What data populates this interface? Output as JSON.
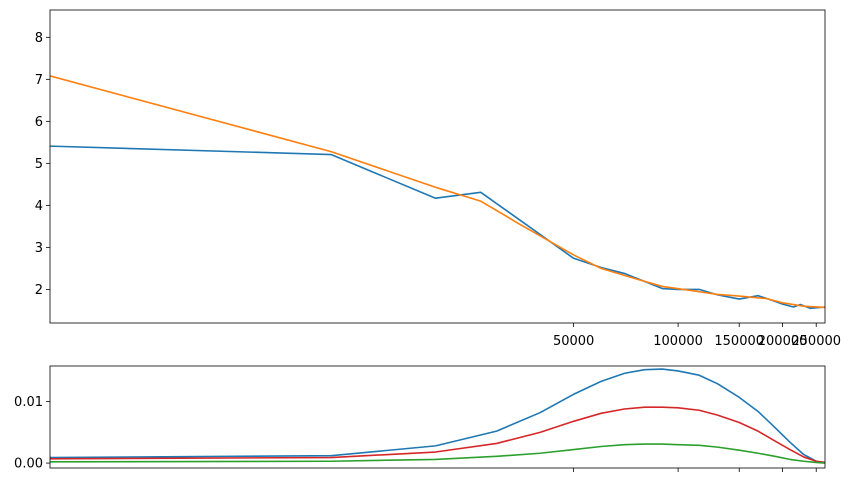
{
  "chart_data": [
    {
      "type": "line",
      "title": "",
      "xlabel": "",
      "ylabel": "",
      "xscale": "log",
      "xlim": [
        1550,
        265000
      ],
      "ylim": [
        1.2,
        8.65
      ],
      "yticks": [
        2,
        3,
        4,
        5,
        6,
        7,
        8
      ],
      "ytick_labels": [
        "2",
        "3",
        "4",
        "5",
        "6",
        "7",
        "8"
      ],
      "xticks": [
        50000,
        100000,
        150000,
        200000,
        250000
      ],
      "xtick_labels": [
        "50000",
        "100000",
        "150000",
        "200000",
        "250000"
      ],
      "grid": false,
      "legend": "none",
      "series": [
        {
          "color": "#1f77b4",
          "points": [
            [
              1550,
              5.41
            ],
            [
              10000,
              5.21
            ],
            [
              20000,
              4.17
            ],
            [
              27000,
              4.31
            ],
            [
              35000,
              3.65
            ],
            [
              50000,
              2.74
            ],
            [
              60000,
              2.52
            ],
            [
              70000,
              2.38
            ],
            [
              80000,
              2.19
            ],
            [
              90000,
              2.02
            ],
            [
              100000,
              2.0
            ],
            [
              115000,
              2.0
            ],
            [
              130000,
              1.87
            ],
            [
              150000,
              1.77
            ],
            [
              170000,
              1.85
            ],
            [
              185000,
              1.75
            ],
            [
              200000,
              1.65
            ],
            [
              215000,
              1.58
            ],
            [
              225000,
              1.64
            ],
            [
              240000,
              1.55
            ],
            [
              265000,
              1.58
            ]
          ]
        },
        {
          "color": "#ff7f0e",
          "points": [
            [
              1550,
              7.08
            ],
            [
              10000,
              5.28
            ],
            [
              20000,
              4.43
            ],
            [
              27000,
              4.1
            ],
            [
              35000,
              3.55
            ],
            [
              50000,
              2.82
            ],
            [
              60000,
              2.5
            ],
            [
              75000,
              2.26
            ],
            [
              90000,
              2.07
            ],
            [
              110000,
              1.97
            ],
            [
              130000,
              1.88
            ],
            [
              150000,
              1.84
            ],
            [
              180000,
              1.78
            ],
            [
              200000,
              1.68
            ],
            [
              230000,
              1.6
            ],
            [
              265000,
              1.57
            ]
          ]
        }
      ]
    },
    {
      "type": "line",
      "title": "",
      "xlabel": "",
      "ylabel": "",
      "xscale": "log",
      "xlim": [
        1550,
        265000
      ],
      "ylim": [
        -0.0008,
        0.0158
      ],
      "yticks": [
        0.0,
        0.01
      ],
      "ytick_labels": [
        "0.00",
        "0.01"
      ],
      "xticks": [
        50000,
        100000,
        150000,
        200000,
        250000
      ],
      "xtick_labels": [],
      "grid": false,
      "legend": "none",
      "series": [
        {
          "color": "#1f77b4",
          "points": [
            [
              1550,
              0.0009
            ],
            [
              10000,
              0.0012
            ],
            [
              20000,
              0.0028
            ],
            [
              30000,
              0.0052
            ],
            [
              40000,
              0.0082
            ],
            [
              50000,
              0.0112
            ],
            [
              60000,
              0.0133
            ],
            [
              70000,
              0.0146
            ],
            [
              80000,
              0.0152
            ],
            [
              90000,
              0.0153
            ],
            [
              100000,
              0.015
            ],
            [
              115000,
              0.0143
            ],
            [
              130000,
              0.0129
            ],
            [
              150000,
              0.0107
            ],
            [
              170000,
              0.0084
            ],
            [
              190000,
              0.0058
            ],
            [
              210000,
              0.0034
            ],
            [
              230000,
              0.0014
            ],
            [
              250000,
              0.0003
            ],
            [
              265000,
              0.0001
            ]
          ]
        },
        {
          "color": "#d62728",
          "points": [
            [
              1550,
              0.0007
            ],
            [
              10000,
              0.0009
            ],
            [
              20000,
              0.0018
            ],
            [
              30000,
              0.0032
            ],
            [
              40000,
              0.005
            ],
            [
              50000,
              0.0068
            ],
            [
              60000,
              0.0081
            ],
            [
              70000,
              0.0088
            ],
            [
              80000,
              0.0091
            ],
            [
              90000,
              0.0091
            ],
            [
              100000,
              0.009
            ],
            [
              115000,
              0.0086
            ],
            [
              130000,
              0.0078
            ],
            [
              150000,
              0.0066
            ],
            [
              170000,
              0.0052
            ],
            [
              190000,
              0.0036
            ],
            [
              210000,
              0.0022
            ],
            [
              230000,
              0.001
            ],
            [
              250000,
              0.0003
            ],
            [
              265000,
              0.0001
            ]
          ]
        },
        {
          "color": "#2ca02c",
          "points": [
            [
              1550,
              0.0002
            ],
            [
              10000,
              0.0003
            ],
            [
              20000,
              0.0006
            ],
            [
              30000,
              0.0011
            ],
            [
              40000,
              0.0016
            ],
            [
              50000,
              0.0022
            ],
            [
              60000,
              0.0027
            ],
            [
              70000,
              0.003
            ],
            [
              80000,
              0.0031
            ],
            [
              90000,
              0.0031
            ],
            [
              100000,
              0.003
            ],
            [
              115000,
              0.0029
            ],
            [
              130000,
              0.0026
            ],
            [
              150000,
              0.0021
            ],
            [
              170000,
              0.0016
            ],
            [
              190000,
              0.0011
            ],
            [
              210000,
              0.0006
            ],
            [
              230000,
              0.0003
            ],
            [
              250000,
              0.0001
            ],
            [
              265000,
              0.0
            ]
          ]
        }
      ]
    }
  ]
}
